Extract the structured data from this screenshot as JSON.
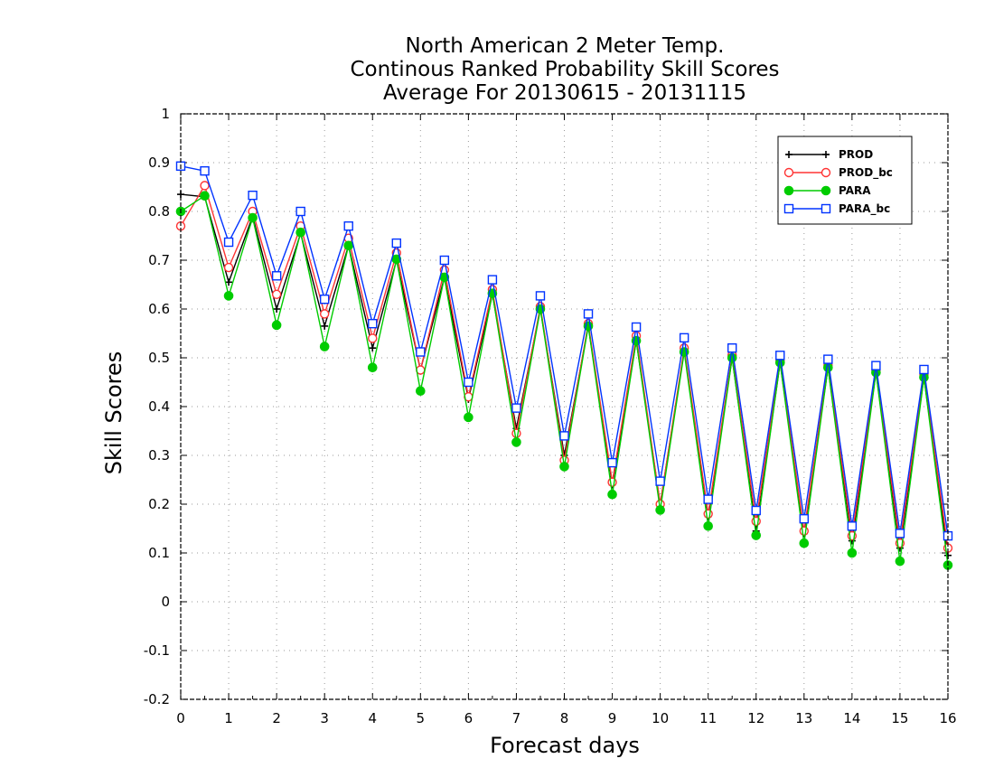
{
  "chart_data": {
    "type": "line",
    "title_lines": [
      "North American 2 Meter Temp.",
      "Continous Ranked Probability Skill Scores",
      "Average For 20130615 - 20131115"
    ],
    "xlabel": "Forecast days",
    "ylabel": "Skill Scores",
    "xlim": [
      0,
      16
    ],
    "ylim": [
      -0.2,
      1
    ],
    "x_ticks": [
      0,
      1,
      2,
      3,
      4,
      5,
      6,
      7,
      8,
      9,
      10,
      11,
      12,
      13,
      14,
      15,
      16
    ],
    "y_ticks": [
      -0.2,
      -0.1,
      0,
      0.1,
      0.2,
      0.3,
      0.4,
      0.5,
      0.6,
      0.7,
      0.8,
      0.9,
      1
    ],
    "y_tick_labels": [
      "-0.2",
      "-0.1",
      "0",
      "0.1",
      "0.2",
      "0.3",
      "0.4",
      "0.5",
      "0.6",
      "0.7",
      "0.8",
      "0.9",
      "1"
    ],
    "grid": true,
    "legend_position": "top-right",
    "x": [
      0,
      0.5,
      1,
      1.5,
      2,
      2.5,
      3,
      3.5,
      4,
      4.5,
      5,
      5.5,
      6,
      6.5,
      7,
      7.5,
      8,
      8.5,
      9,
      9.5,
      10,
      10.5,
      11,
      11.5,
      12,
      12.5,
      13,
      13.5,
      14,
      14.5,
      15,
      15.5,
      16
    ],
    "series": [
      {
        "name": "PROD",
        "color": "#000000",
        "marker": "plus",
        "values": [
          0.835,
          0.83,
          0.655,
          0.79,
          0.6,
          0.755,
          0.565,
          0.73,
          0.52,
          0.7,
          0.475,
          0.665,
          0.415,
          0.63,
          0.355,
          0.6,
          0.3,
          0.565,
          0.24,
          0.535,
          0.2,
          0.515,
          0.175,
          0.5,
          0.145,
          0.49,
          0.14,
          0.48,
          0.125,
          0.47,
          0.11,
          0.46,
          0.095
        ]
      },
      {
        "name": "PROD_bc",
        "color": "#ff3333",
        "marker": "circle-open",
        "values": [
          0.77,
          0.853,
          0.685,
          0.8,
          0.63,
          0.77,
          0.59,
          0.745,
          0.54,
          0.715,
          0.475,
          0.68,
          0.42,
          0.64,
          0.345,
          0.605,
          0.29,
          0.57,
          0.245,
          0.545,
          0.2,
          0.52,
          0.18,
          0.505,
          0.165,
          0.495,
          0.145,
          0.485,
          0.135,
          0.475,
          0.12,
          0.465,
          0.11
        ]
      },
      {
        "name": "PARA",
        "color": "#00cc00",
        "marker": "circle-filled",
        "values": [
          0.8,
          0.832,
          0.627,
          0.787,
          0.567,
          0.757,
          0.523,
          0.73,
          0.48,
          0.702,
          0.432,
          0.665,
          0.378,
          0.632,
          0.327,
          0.6,
          0.277,
          0.565,
          0.22,
          0.535,
          0.188,
          0.512,
          0.155,
          0.5,
          0.136,
          0.49,
          0.12,
          0.48,
          0.1,
          0.47,
          0.083,
          0.46,
          0.075
        ]
      },
      {
        "name": "PARA_bc",
        "color": "#0033ff",
        "marker": "square-open",
        "values": [
          0.893,
          0.883,
          0.737,
          0.833,
          0.668,
          0.8,
          0.62,
          0.77,
          0.57,
          0.735,
          0.512,
          0.7,
          0.45,
          0.66,
          0.397,
          0.627,
          0.34,
          0.59,
          0.285,
          0.563,
          0.247,
          0.541,
          0.21,
          0.52,
          0.187,
          0.505,
          0.17,
          0.497,
          0.155,
          0.484,
          0.14,
          0.476,
          0.135
        ]
      }
    ]
  }
}
